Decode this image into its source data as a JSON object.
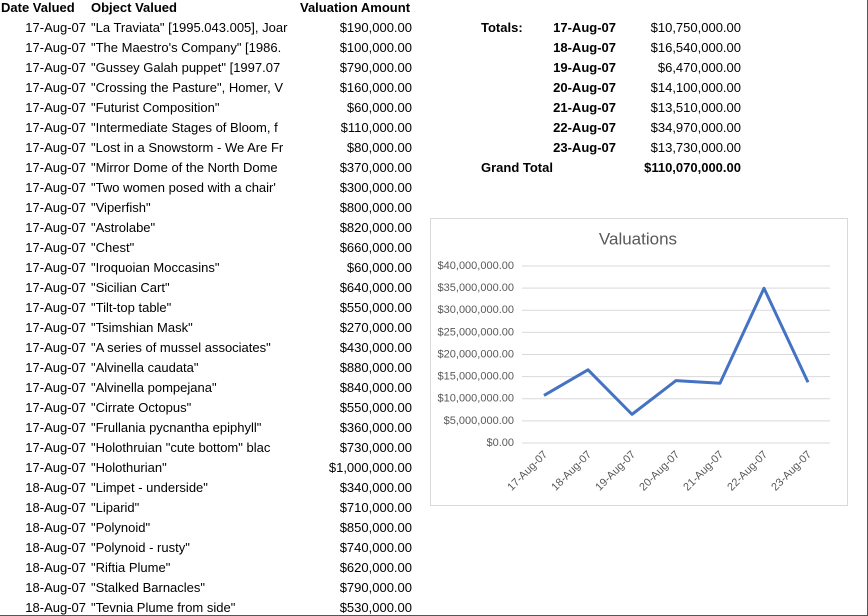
{
  "table": {
    "headers": [
      "Date Valued",
      "Object Valued",
      "Valuation Amount"
    ],
    "rows": [
      [
        "17-Aug-07",
        "\"La Traviata\" [1995.043.005], Joar",
        "$190,000.00"
      ],
      [
        "17-Aug-07",
        "\"The Maestro's Company\" [1986.",
        "$100,000.00"
      ],
      [
        "17-Aug-07",
        "\"Gussey Galah puppet\" [1997.07",
        "$790,000.00"
      ],
      [
        "17-Aug-07",
        "\"Crossing the Pasture\", Homer, V",
        "$160,000.00"
      ],
      [
        "17-Aug-07",
        "\"Futurist Composition\"",
        "$60,000.00"
      ],
      [
        "17-Aug-07",
        "\"Intermediate Stages of Bloom, f",
        "$110,000.00"
      ],
      [
        "17-Aug-07",
        "\"Lost in a Snowstorm - We Are Fr",
        "$80,000.00"
      ],
      [
        "17-Aug-07",
        "\"Mirror Dome of the North Dome",
        "$370,000.00"
      ],
      [
        "17-Aug-07",
        "\"Two women posed with a chair'",
        "$300,000.00"
      ],
      [
        "17-Aug-07",
        "\"Viperfish\"",
        "$800,000.00"
      ],
      [
        "17-Aug-07",
        "\"Astrolabe\"",
        "$820,000.00"
      ],
      [
        "17-Aug-07",
        "\"Chest\"",
        "$660,000.00"
      ],
      [
        "17-Aug-07",
        "\"Iroquoian Moccasins\"",
        "$60,000.00"
      ],
      [
        "17-Aug-07",
        "\"Sicilian Cart\"",
        "$640,000.00"
      ],
      [
        "17-Aug-07",
        "\"Tilt-top table\"",
        "$550,000.00"
      ],
      [
        "17-Aug-07",
        "\"Tsimshian Mask\"",
        "$270,000.00"
      ],
      [
        "17-Aug-07",
        "\"A series of mussel associates\"",
        "$430,000.00"
      ],
      [
        "17-Aug-07",
        "\"Alvinella caudata\"",
        "$880,000.00"
      ],
      [
        "17-Aug-07",
        "\"Alvinella pompejana\"",
        "$840,000.00"
      ],
      [
        "17-Aug-07",
        "\"Cirrate Octopus\"",
        "$550,000.00"
      ],
      [
        "17-Aug-07",
        "\"Frullania pycnantha epiphyll\"",
        "$360,000.00"
      ],
      [
        "17-Aug-07",
        "\"Holothruian \"cute bottom\" blac",
        "$730,000.00"
      ],
      [
        "17-Aug-07",
        "\"Holothurian\"",
        "$1,000,000.00"
      ],
      [
        "18-Aug-07",
        "\"Limpet - underside\"",
        "$340,000.00"
      ],
      [
        "18-Aug-07",
        "\"Liparid\"",
        "$710,000.00"
      ],
      [
        "18-Aug-07",
        "\"Polynoid\"",
        "$850,000.00"
      ],
      [
        "18-Aug-07",
        "\"Polynoid - rusty\"",
        "$740,000.00"
      ],
      [
        "18-Aug-07",
        "\"Riftia Plume\"",
        "$620,000.00"
      ],
      [
        "18-Aug-07",
        "\"Stalked Barnacles\"",
        "$790,000.00"
      ],
      [
        "18-Aug-07",
        "\"Tevnia Plume from side\"",
        "$530,000.00"
      ]
    ]
  },
  "totals": {
    "label": "Totals:",
    "rows": [
      [
        "17-Aug-07",
        "$10,750,000.00"
      ],
      [
        "18-Aug-07",
        "$16,540,000.00"
      ],
      [
        "19-Aug-07",
        "$6,470,000.00"
      ],
      [
        "20-Aug-07",
        "$14,100,000.00"
      ],
      [
        "21-Aug-07",
        "$13,510,000.00"
      ],
      [
        "22-Aug-07",
        "$34,970,000.00"
      ],
      [
        "23-Aug-07",
        "$13,730,000.00"
      ]
    ],
    "grand_total_label": "Grand Total",
    "grand_total": "$110,070,000.00"
  },
  "chart": {
    "type": "line",
    "title": "Valuations",
    "color": "#4472c4",
    "categories": [
      "17-Aug-07",
      "18-Aug-07",
      "19-Aug-07",
      "20-Aug-07",
      "21-Aug-07",
      "22-Aug-07",
      "23-Aug-07"
    ],
    "values": [
      10750000,
      16540000,
      6470000,
      14100000,
      13510000,
      34970000,
      13730000
    ],
    "ylim": [
      0,
      40000000
    ],
    "grid": true,
    "yticks": [
      {
        "value": 0,
        "label": "$0.00"
      },
      {
        "value": 5000000,
        "label": "$5,000,000.00"
      },
      {
        "value": 10000000,
        "label": "$10,000,000.00"
      },
      {
        "value": 15000000,
        "label": "$15,000,000.00"
      },
      {
        "value": 20000000,
        "label": "$20,000,000.00"
      },
      {
        "value": 25000000,
        "label": "$25,000,000.00"
      },
      {
        "value": 30000000,
        "label": "$30,000,000.00"
      },
      {
        "value": 35000000,
        "label": "$35,000,000.00"
      },
      {
        "value": 40000000,
        "label": "$40,000,000.00"
      }
    ]
  }
}
